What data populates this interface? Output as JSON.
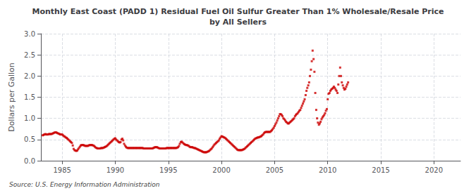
{
  "chart_data": {
    "type": "scatter",
    "title": "Monthly East Coast (PADD 1) Residual Fuel Oil Sulfur Greater Than 1% Wholesale/Resale Price\nby All Sellers",
    "ylabel": "Dollars per Gallon",
    "source": "Source: U.S. Energy Information Administration",
    "color": "#cc0000",
    "marker": "square",
    "grid": true,
    "xlim": [
      1983.0,
      2022.5
    ],
    "ylim": [
      0.0,
      3.0
    ],
    "xticks": [
      1985,
      1990,
      1995,
      2000,
      2005,
      2010,
      2015,
      2020
    ],
    "yticks": [
      {
        "value": 0.0,
        "label": "0.0"
      },
      0.5,
      {
        "value": 1.0,
        "label": "1.0"
      },
      1.5,
      {
        "value": 2.0,
        "label": "2.0"
      },
      2.5,
      {
        "value": 3.0,
        "label": "3.0"
      }
    ],
    "x": [
      1983.17,
      1983.25,
      1983.33,
      1983.42,
      1983.5,
      1983.58,
      1983.67,
      1983.75,
      1983.83,
      1983.92,
      1984.0,
      1984.08,
      1984.17,
      1984.25,
      1984.33,
      1984.42,
      1984.5,
      1984.58,
      1984.67,
      1984.75,
      1984.83,
      1984.92,
      1985.0,
      1985.08,
      1985.17,
      1985.25,
      1985.33,
      1985.42,
      1985.5,
      1985.58,
      1985.67,
      1985.75,
      1985.83,
      1985.92,
      1986.0,
      1986.08,
      1986.17,
      1986.25,
      1986.33,
      1986.42,
      1986.5,
      1986.58,
      1986.67,
      1986.75,
      1986.83,
      1986.92,
      1987.0,
      1987.08,
      1987.17,
      1987.25,
      1987.33,
      1987.42,
      1987.5,
      1987.58,
      1987.67,
      1987.75,
      1987.83,
      1987.92,
      1988.0,
      1988.08,
      1988.17,
      1988.25,
      1988.33,
      1988.42,
      1988.5,
      1988.58,
      1988.67,
      1988.75,
      1988.83,
      1988.92,
      1989.0,
      1989.08,
      1989.17,
      1989.25,
      1989.33,
      1989.42,
      1989.5,
      1989.58,
      1989.67,
      1989.75,
      1989.83,
      1989.92,
      1990.0,
      1990.08,
      1990.17,
      1990.25,
      1990.33,
      1990.42,
      1990.5,
      1990.58,
      1990.67,
      1990.75,
      1990.83,
      1990.92,
      1991.0,
      1991.08,
      1991.17,
      1991.25,
      1991.33,
      1991.42,
      1991.5,
      1991.58,
      1991.67,
      1991.75,
      1991.83,
      1991.92,
      1992.0,
      1992.08,
      1992.17,
      1992.25,
      1992.33,
      1992.42,
      1992.5,
      1992.58,
      1992.67,
      1992.75,
      1992.83,
      1992.92,
      1993.0,
      1993.08,
      1993.17,
      1993.25,
      1993.33,
      1993.42,
      1993.5,
      1993.58,
      1993.67,
      1993.75,
      1993.83,
      1993.92,
      1994.0,
      1994.08,
      1994.17,
      1994.25,
      1994.33,
      1994.42,
      1994.5,
      1994.58,
      1994.67,
      1994.75,
      1994.83,
      1994.92,
      1995.0,
      1995.08,
      1995.17,
      1995.25,
      1995.33,
      1995.42,
      1995.5,
      1995.58,
      1995.67,
      1995.75,
      1995.83,
      1995.92,
      1996.0,
      1996.08,
      1996.17,
      1996.25,
      1996.33,
      1996.42,
      1996.5,
      1996.58,
      1996.67,
      1996.75,
      1996.83,
      1996.92,
      1997.0,
      1997.08,
      1997.17,
      1997.25,
      1997.33,
      1997.42,
      1997.5,
      1997.58,
      1997.67,
      1997.75,
      1997.83,
      1997.92,
      1998.0,
      1998.08,
      1998.17,
      1998.25,
      1998.33,
      1998.42,
      1998.5,
      1998.58,
      1998.67,
      1998.75,
      1998.83,
      1998.92,
      1999.0,
      1999.08,
      1999.17,
      1999.25,
      1999.33,
      1999.42,
      1999.5,
      1999.58,
      1999.67,
      1999.75,
      1999.83,
      1999.92,
      2000.0,
      2000.08,
      2000.17,
      2000.25,
      2000.33,
      2000.42,
      2000.5,
      2000.58,
      2000.67,
      2000.75,
      2000.83,
      2000.92,
      2001.0,
      2001.08,
      2001.17,
      2001.25,
      2001.33,
      2001.42,
      2001.5,
      2001.58,
      2001.67,
      2001.75,
      2001.83,
      2001.92,
      2002.0,
      2002.08,
      2002.17,
      2002.25,
      2002.33,
      2002.42,
      2002.5,
      2002.58,
      2002.67,
      2002.75,
      2002.83,
      2002.92,
      2003.0,
      2003.08,
      2003.17,
      2003.25,
      2003.33,
      2003.42,
      2003.5,
      2003.58,
      2003.67,
      2003.75,
      2003.83,
      2003.92,
      2004.0,
      2004.08,
      2004.17,
      2004.25,
      2004.33,
      2004.42,
      2004.5,
      2004.58,
      2004.67,
      2004.75,
      2004.83,
      2004.92,
      2005.0,
      2005.08,
      2005.17,
      2005.25,
      2005.33,
      2005.42,
      2005.5,
      2005.58,
      2005.67,
      2005.75,
      2005.83,
      2005.92,
      2006.0,
      2006.08,
      2006.17,
      2006.25,
      2006.33,
      2006.42,
      2006.5,
      2006.58,
      2006.67,
      2006.75,
      2006.83,
      2006.92,
      2007.0,
      2007.08,
      2007.17,
      2007.25,
      2007.33,
      2007.42,
      2007.5,
      2007.58,
      2007.67,
      2007.75,
      2007.83,
      2007.92,
      2008.0,
      2008.08,
      2008.17,
      2008.25,
      2008.33,
      2008.42,
      2008.5,
      2008.58,
      2008.67,
      2008.75,
      2008.83,
      2008.92,
      2009.0,
      2009.08,
      2009.17,
      2009.25,
      2009.33,
      2009.42,
      2009.5,
      2009.58,
      2009.67,
      2009.75,
      2009.83,
      2009.92,
      2010.0,
      2010.08,
      2010.17,
      2010.25,
      2010.33,
      2010.42,
      2010.5,
      2010.58,
      2010.67,
      2010.75,
      2010.83,
      2010.92,
      2011.0,
      2011.08,
      2011.17,
      2011.25,
      2011.33,
      2011.42,
      2011.5,
      2011.58,
      2011.67,
      2011.75,
      2011.83,
      2011.92
    ],
    "values": [
      0.6,
      0.61,
      0.62,
      0.63,
      0.62,
      0.62,
      0.62,
      0.63,
      0.63,
      0.63,
      0.63,
      0.64,
      0.65,
      0.66,
      0.67,
      0.67,
      0.66,
      0.65,
      0.64,
      0.63,
      0.62,
      0.62,
      0.62,
      0.6,
      0.58,
      0.57,
      0.55,
      0.54,
      0.52,
      0.5,
      0.48,
      0.46,
      0.44,
      0.42,
      0.36,
      0.28,
      0.25,
      0.24,
      0.23,
      0.24,
      0.27,
      0.3,
      0.33,
      0.36,
      0.37,
      0.37,
      0.37,
      0.36,
      0.35,
      0.35,
      0.35,
      0.35,
      0.36,
      0.37,
      0.37,
      0.37,
      0.37,
      0.36,
      0.35,
      0.33,
      0.31,
      0.3,
      0.29,
      0.29,
      0.29,
      0.29,
      0.3,
      0.3,
      0.3,
      0.31,
      0.32,
      0.33,
      0.34,
      0.36,
      0.38,
      0.4,
      0.42,
      0.44,
      0.46,
      0.48,
      0.5,
      0.52,
      0.53,
      0.5,
      0.48,
      0.46,
      0.44,
      0.43,
      0.44,
      0.5,
      0.52,
      0.48,
      0.4,
      0.36,
      0.33,
      0.31,
      0.3,
      0.3,
      0.3,
      0.3,
      0.3,
      0.3,
      0.3,
      0.3,
      0.3,
      0.3,
      0.3,
      0.3,
      0.3,
      0.3,
      0.3,
      0.3,
      0.3,
      0.3,
      0.29,
      0.29,
      0.29,
      0.29,
      0.29,
      0.29,
      0.29,
      0.29,
      0.29,
      0.29,
      0.29,
      0.3,
      0.31,
      0.32,
      0.32,
      0.32,
      0.31,
      0.3,
      0.29,
      0.29,
      0.29,
      0.29,
      0.29,
      0.29,
      0.29,
      0.29,
      0.3,
      0.3,
      0.3,
      0.3,
      0.3,
      0.3,
      0.3,
      0.3,
      0.3,
      0.3,
      0.3,
      0.3,
      0.31,
      0.32,
      0.35,
      0.4,
      0.44,
      0.45,
      0.43,
      0.41,
      0.39,
      0.38,
      0.37,
      0.37,
      0.36,
      0.35,
      0.33,
      0.32,
      0.32,
      0.32,
      0.31,
      0.3,
      0.3,
      0.29,
      0.28,
      0.27,
      0.26,
      0.25,
      0.24,
      0.23,
      0.22,
      0.21,
      0.2,
      0.2,
      0.2,
      0.2,
      0.21,
      0.22,
      0.23,
      0.25,
      0.27,
      0.29,
      0.32,
      0.35,
      0.38,
      0.4,
      0.42,
      0.44,
      0.46,
      0.48,
      0.52,
      0.55,
      0.58,
      0.57,
      0.56,
      0.55,
      0.54,
      0.52,
      0.5,
      0.48,
      0.46,
      0.44,
      0.42,
      0.4,
      0.38,
      0.36,
      0.34,
      0.32,
      0.3,
      0.28,
      0.26,
      0.25,
      0.25,
      0.25,
      0.25,
      0.25,
      0.26,
      0.27,
      0.28,
      0.3,
      0.32,
      0.34,
      0.36,
      0.38,
      0.4,
      0.42,
      0.44,
      0.46,
      0.48,
      0.5,
      0.52,
      0.53,
      0.54,
      0.55,
      0.55,
      0.56,
      0.57,
      0.58,
      0.6,
      0.62,
      0.65,
      0.67,
      0.68,
      0.68,
      0.68,
      0.68,
      0.68,
      0.68,
      0.7,
      0.72,
      0.75,
      0.78,
      0.82,
      0.86,
      0.9,
      0.95,
      1.0,
      1.05,
      1.1,
      1.1,
      1.08,
      1.05,
      1.0,
      0.98,
      0.95,
      0.92,
      0.9,
      0.88,
      0.88,
      0.9,
      0.92,
      0.94,
      0.96,
      0.98,
      1.0,
      1.05,
      1.08,
      1.1,
      1.12,
      1.15,
      1.18,
      1.2,
      1.25,
      1.3,
      1.35,
      1.4,
      1.45,
      1.55,
      1.65,
      1.72,
      1.78,
      1.85,
      2.0,
      2.15,
      2.35,
      2.6,
      2.4,
      2.1,
      1.6,
      1.2,
      1.0,
      0.9,
      0.85,
      0.88,
      0.92,
      0.98,
      1.02,
      1.05,
      1.08,
      1.12,
      1.18,
      1.22,
      1.45,
      1.58,
      1.6,
      1.65,
      1.68,
      1.7,
      1.72,
      1.75,
      1.72,
      1.68,
      1.65,
      1.6,
      1.8,
      2.0,
      2.2,
      2.0,
      1.85,
      1.78,
      1.72,
      1.68,
      1.7,
      1.75,
      1.8,
      1.85
    ]
  }
}
